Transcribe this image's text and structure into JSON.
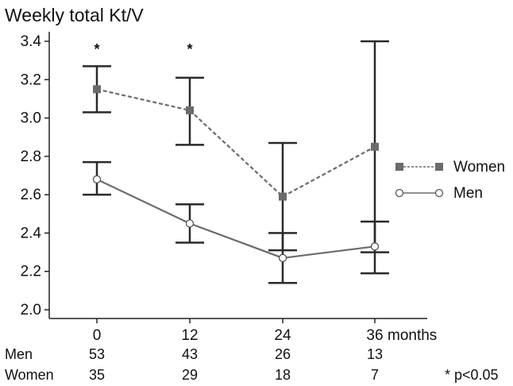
{
  "chart_data": {
    "type": "line",
    "title": "",
    "ylabel": "Weekly total Kt/V",
    "xlabel": "months",
    "x": [
      0,
      12,
      24,
      36
    ],
    "x_tick_labels": [
      "0",
      "12",
      "24",
      "36"
    ],
    "ylim": [
      2.0,
      3.4
    ],
    "y_ticks": [
      "2.0",
      "2.2",
      "2.4",
      "2.6",
      "2.8",
      "3.0",
      "3.2",
      "3.4"
    ],
    "grid": false,
    "legend_position": "right",
    "series": [
      {
        "name": "Women",
        "style": "dashed",
        "marker": "filled-square",
        "color": "#6b6b6b",
        "values": [
          3.15,
          3.04,
          2.59,
          2.85
        ],
        "error_low": [
          3.03,
          2.86,
          2.31,
          2.3
        ],
        "error_high": [
          3.27,
          3.21,
          2.87,
          3.4
        ]
      },
      {
        "name": "Men",
        "style": "solid",
        "marker": "open-circle",
        "color": "#6b6b6b",
        "values": [
          2.68,
          2.45,
          2.27,
          2.33
        ],
        "error_low": [
          2.6,
          2.35,
          2.14,
          2.19
        ],
        "error_high": [
          2.77,
          2.55,
          2.4,
          2.46
        ]
      }
    ],
    "significance": {
      "marker": "*",
      "at_x": [
        0,
        12
      ],
      "note": "* p<0.05"
    },
    "counts_table": {
      "rows": [
        {
          "label": "Men",
          "values": [
            "53",
            "43",
            "26",
            "13"
          ]
        },
        {
          "label": "Women",
          "values": [
            "35",
            "29",
            "18",
            "7"
          ]
        }
      ]
    }
  }
}
